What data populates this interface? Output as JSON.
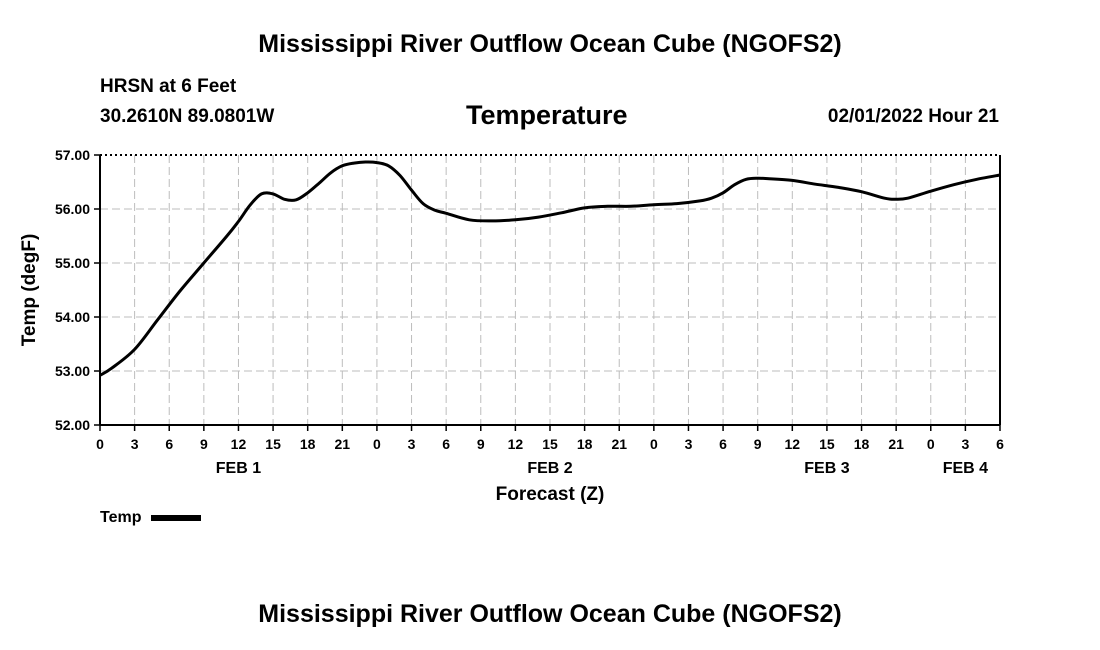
{
  "header": {
    "title": "Mississippi River Outflow Ocean Cube (NGOFS2)",
    "station": "HRSN at 6 Feet",
    "coords": "30.2610N  89.0801W",
    "date_hour": "02/01/2022 Hour 21"
  },
  "footer": {
    "title": "Mississippi River Outflow Ocean Cube (NGOFS2)"
  },
  "chart_data": {
    "type": "line",
    "title": "Temperature",
    "xlabel": "Forecast (Z)",
    "ylabel": "Temp (degF)",
    "x_unit": "hours since FEB 1 00Z",
    "xlim": [
      0,
      78
    ],
    "ylim": [
      52.0,
      57.0
    ],
    "grid": true,
    "x_ticks": [
      {
        "h": 0,
        "label": "0"
      },
      {
        "h": 3,
        "label": "3"
      },
      {
        "h": 6,
        "label": "6"
      },
      {
        "h": 9,
        "label": "9"
      },
      {
        "h": 12,
        "label": "12"
      },
      {
        "h": 15,
        "label": "15"
      },
      {
        "h": 18,
        "label": "18"
      },
      {
        "h": 21,
        "label": "21"
      },
      {
        "h": 24,
        "label": "0"
      },
      {
        "h": 27,
        "label": "3"
      },
      {
        "h": 30,
        "label": "6"
      },
      {
        "h": 33,
        "label": "9"
      },
      {
        "h": 36,
        "label": "12"
      },
      {
        "h": 39,
        "label": "15"
      },
      {
        "h": 42,
        "label": "18"
      },
      {
        "h": 45,
        "label": "21"
      },
      {
        "h": 48,
        "label": "0"
      },
      {
        "h": 51,
        "label": "3"
      },
      {
        "h": 54,
        "label": "6"
      },
      {
        "h": 57,
        "label": "9"
      },
      {
        "h": 60,
        "label": "12"
      },
      {
        "h": 63,
        "label": "15"
      },
      {
        "h": 66,
        "label": "18"
      },
      {
        "h": 69,
        "label": "21"
      },
      {
        "h": 72,
        "label": "0"
      },
      {
        "h": 75,
        "label": "3"
      },
      {
        "h": 78,
        "label": "6"
      }
    ],
    "y_ticks": [
      {
        "v": 52.0,
        "label": "52.00"
      },
      {
        "v": 53.0,
        "label": "53.00"
      },
      {
        "v": 54.0,
        "label": "54.00"
      },
      {
        "v": 55.0,
        "label": "55.00"
      },
      {
        "v": 56.0,
        "label": "56.00"
      },
      {
        "v": 57.0,
        "label": "57.00"
      }
    ],
    "day_labels": [
      {
        "h": 12,
        "label": "FEB 1"
      },
      {
        "h": 39,
        "label": "FEB 2"
      },
      {
        "h": 63,
        "label": "FEB 3"
      },
      {
        "h": 75,
        "label": "FEB 4"
      }
    ],
    "series": [
      {
        "name": "Temp",
        "x": [
          0,
          1,
          3,
          5,
          7,
          9,
          11,
          12,
          13,
          14,
          15,
          16,
          17,
          18,
          19,
          20,
          21,
          22,
          23,
          24,
          25,
          26,
          27,
          28,
          29,
          30,
          32,
          34,
          36,
          38,
          40,
          42,
          44,
          46,
          48,
          50,
          52,
          53,
          54,
          55,
          56,
          57,
          58,
          60,
          62,
          64,
          66,
          68,
          69,
          70,
          72,
          74,
          76,
          78
        ],
        "values": [
          52.92,
          53.05,
          53.4,
          53.95,
          54.5,
          55.0,
          55.5,
          55.77,
          56.07,
          56.28,
          56.28,
          56.18,
          56.17,
          56.3,
          56.48,
          56.67,
          56.8,
          56.85,
          56.87,
          56.86,
          56.8,
          56.62,
          56.35,
          56.1,
          55.98,
          55.92,
          55.8,
          55.78,
          55.8,
          55.85,
          55.93,
          56.02,
          56.05,
          56.05,
          56.08,
          56.1,
          56.15,
          56.2,
          56.3,
          56.45,
          56.55,
          56.57,
          56.56,
          56.53,
          56.46,
          56.4,
          56.32,
          56.2,
          56.18,
          56.2,
          56.33,
          56.45,
          56.55,
          56.63
        ]
      }
    ],
    "legend": {
      "label": "Temp",
      "position": "bottom-left"
    }
  }
}
